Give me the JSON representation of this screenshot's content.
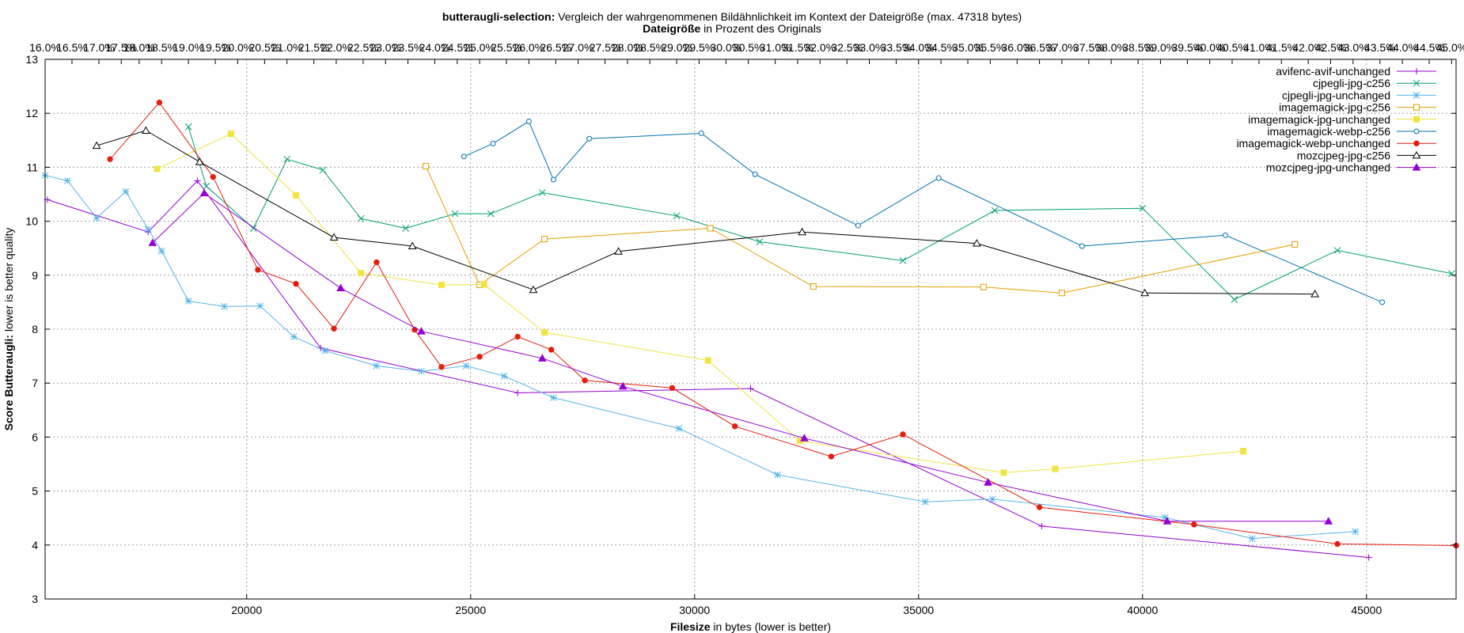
{
  "header": {
    "title_bold": "butteraugli-selection:",
    "title_rest": " Vergleich der wahrgenommenen Bildähnlichkeit im Kontext der Dateigröße (max. 47318 bytes)",
    "top_axis_bold": "Dateigröße",
    "top_axis_rest": " in Prozent des Originals"
  },
  "chart_data": {
    "type": "line",
    "xlabel_bold": "Filesize",
    "xlabel_rest": " in bytes (lower is better)",
    "ylabel_bold": "Score Butteraugli:",
    "ylabel_rest": " lower is better quality",
    "xlim": [
      15500,
      47000
    ],
    "ylim": [
      3,
      13
    ],
    "x_ticks": [
      20000,
      25000,
      30000,
      35000,
      40000,
      45000
    ],
    "y_ticks": [
      3,
      4,
      5,
      6,
      7,
      8,
      9,
      10,
      11,
      12,
      13
    ],
    "grid": true,
    "legend_position": "top-right",
    "top_ticks": [
      {
        "x": 15500,
        "label": "16.0%"
      },
      {
        "x": 16100,
        "label": "16.5%"
      },
      {
        "x": 16700,
        "label": "17.0%"
      },
      {
        "x": 17200,
        "label": "17.5%"
      },
      {
        "x": 17600,
        "label": "18.0%"
      },
      {
        "x": 18100,
        "label": "18.5%"
      },
      {
        "x": 18700,
        "label": "19.0%"
      },
      {
        "x": 19300,
        "label": "19.5%"
      },
      {
        "x": 19800,
        "label": "20.0%"
      },
      {
        "x": 20400,
        "label": "20.5%"
      },
      {
        "x": 20900,
        "label": "21.0%"
      },
      {
        "x": 21500,
        "label": "21.5%"
      },
      {
        "x": 22000,
        "label": "22.0%"
      },
      {
        "x": 22600,
        "label": "22.5%"
      },
      {
        "x": 23100,
        "label": "23.0%"
      },
      {
        "x": 23600,
        "label": "23.5%"
      },
      {
        "x": 24200,
        "label": "24.0%"
      },
      {
        "x": 24700,
        "label": "24.5%"
      },
      {
        "x": 25200,
        "label": "25.0%"
      },
      {
        "x": 25800,
        "label": "25.5%"
      },
      {
        "x": 26300,
        "label": "26.0%"
      },
      {
        "x": 26900,
        "label": "26.5%"
      },
      {
        "x": 27400,
        "label": "27.0%"
      },
      {
        "x": 28000,
        "label": "27.5%"
      },
      {
        "x": 28500,
        "label": "28.0%"
      },
      {
        "x": 29000,
        "label": "28.5%"
      },
      {
        "x": 29600,
        "label": "29.0%"
      },
      {
        "x": 30100,
        "label": "29.5%"
      },
      {
        "x": 30700,
        "label": "30.0%"
      },
      {
        "x": 31200,
        "label": "30.5%"
      },
      {
        "x": 31800,
        "label": "31.0%"
      },
      {
        "x": 32300,
        "label": "31.5%"
      },
      {
        "x": 32800,
        "label": "32.0%"
      },
      {
        "x": 33400,
        "label": "32.5%"
      },
      {
        "x": 33900,
        "label": "33.0%"
      },
      {
        "x": 34500,
        "label": "33.5%"
      },
      {
        "x": 35000,
        "label": "34.0%"
      },
      {
        "x": 35500,
        "label": "34.5%"
      },
      {
        "x": 36100,
        "label": "35.0%"
      },
      {
        "x": 36600,
        "label": "35.5%"
      },
      {
        "x": 37200,
        "label": "36.0%"
      },
      {
        "x": 37700,
        "label": "36.5%"
      },
      {
        "x": 38200,
        "label": "37.0%"
      },
      {
        "x": 38800,
        "label": "37.5%"
      },
      {
        "x": 39300,
        "label": "38.0%"
      },
      {
        "x": 39900,
        "label": "38.5%"
      },
      {
        "x": 40400,
        "label": "39.0%"
      },
      {
        "x": 41000,
        "label": "39.5%"
      },
      {
        "x": 41500,
        "label": "40.0%"
      },
      {
        "x": 42000,
        "label": "40.5%"
      },
      {
        "x": 42600,
        "label": "41.0%"
      },
      {
        "x": 43100,
        "label": "41.5%"
      },
      {
        "x": 43700,
        "label": "42.0%"
      },
      {
        "x": 44200,
        "label": "42.5%"
      },
      {
        "x": 44700,
        "label": "43.0%"
      },
      {
        "x": 45300,
        "label": "43.5%"
      },
      {
        "x": 45800,
        "label": "44.0%"
      },
      {
        "x": 46400,
        "label": "44.5%"
      },
      {
        "x": 46900,
        "label": "45.0%"
      }
    ],
    "series": [
      {
        "name": "avifenc-avif-unchanged",
        "color": "#9400d3",
        "marker": "plus",
        "points": [
          [
            15550,
            10.4
          ],
          [
            17800,
            9.8
          ],
          [
            18900,
            10.75
          ],
          [
            21650,
            7.65
          ],
          [
            26050,
            6.82
          ],
          [
            31250,
            6.9
          ],
          [
            37750,
            4.35
          ],
          [
            45050,
            3.77
          ]
        ]
      },
      {
        "name": "cjpegli-jpg-c256",
        "color": "#009e73",
        "marker": "cross",
        "points": [
          [
            18700,
            11.75
          ],
          [
            19100,
            10.65
          ],
          [
            20150,
            9.87
          ],
          [
            20900,
            11.15
          ],
          [
            21700,
            10.95
          ],
          [
            22550,
            10.05
          ],
          [
            23550,
            9.87
          ],
          [
            24650,
            10.14
          ],
          [
            25450,
            10.14
          ],
          [
            26600,
            10.53
          ],
          [
            29600,
            10.1
          ],
          [
            31450,
            9.62
          ],
          [
            34650,
            9.27
          ],
          [
            36700,
            10.2
          ],
          [
            40000,
            10.24
          ],
          [
            42050,
            8.55
          ],
          [
            44350,
            9.46
          ],
          [
            46900,
            9.03
          ]
        ]
      },
      {
        "name": "cjpegli-jpg-unchanged",
        "color": "#56b4e9",
        "marker": "asterisk",
        "points": [
          [
            15500,
            10.85
          ],
          [
            16000,
            10.75
          ],
          [
            16650,
            10.06
          ],
          [
            17300,
            10.55
          ],
          [
            17800,
            9.85
          ],
          [
            18100,
            9.45
          ],
          [
            18700,
            8.52
          ],
          [
            19500,
            8.42
          ],
          [
            20300,
            8.43
          ],
          [
            21050,
            7.86
          ],
          [
            21750,
            7.6
          ],
          [
            22900,
            7.32
          ],
          [
            23900,
            7.22
          ],
          [
            24900,
            7.32
          ],
          [
            25750,
            7.13
          ],
          [
            26850,
            6.73
          ],
          [
            29650,
            6.16
          ],
          [
            31850,
            5.3
          ],
          [
            35150,
            4.8
          ],
          [
            36650,
            4.85
          ],
          [
            40500,
            4.51
          ],
          [
            42450,
            4.12
          ],
          [
            44750,
            4.25
          ]
        ]
      },
      {
        "name": "imagemagick-jpg-c256",
        "color": "#e69f00",
        "marker": "square-open",
        "points": [
          [
            24000,
            11.02
          ],
          [
            25200,
            8.82
          ],
          [
            26650,
            9.67
          ],
          [
            30350,
            9.87
          ],
          [
            32650,
            8.79
          ],
          [
            36450,
            8.78
          ],
          [
            38200,
            8.67
          ],
          [
            43400,
            9.57
          ]
        ]
      },
      {
        "name": "imagemagick-jpg-unchanged",
        "color": "#f0e442",
        "marker": "square-filled",
        "points": [
          [
            18000,
            10.97
          ],
          [
            19650,
            11.62
          ],
          [
            21100,
            10.48
          ],
          [
            22550,
            9.04
          ],
          [
            24350,
            8.82
          ],
          [
            25300,
            8.83
          ],
          [
            26650,
            7.94
          ],
          [
            30300,
            7.42
          ],
          [
            32350,
            5.93
          ],
          [
            36900,
            5.34
          ],
          [
            38050,
            5.41
          ],
          [
            42250,
            5.74
          ]
        ]
      },
      {
        "name": "imagemagick-webp-c256",
        "color": "#0072b2",
        "marker": "circle-open",
        "points": [
          [
            24850,
            11.2
          ],
          [
            25500,
            11.44
          ],
          [
            26300,
            11.85
          ],
          [
            26850,
            10.77
          ],
          [
            27650,
            11.53
          ],
          [
            30150,
            11.63
          ],
          [
            31350,
            10.87
          ],
          [
            33650,
            9.92
          ],
          [
            35450,
            10.8
          ],
          [
            38650,
            9.54
          ],
          [
            41850,
            9.74
          ],
          [
            45350,
            8.5
          ]
        ]
      },
      {
        "name": "imagemagick-webp-unchanged",
        "color": "#e51e10",
        "marker": "circle-filled",
        "points": [
          [
            16950,
            11.15
          ],
          [
            18050,
            12.2
          ],
          [
            19250,
            10.82
          ],
          [
            20250,
            9.1
          ],
          [
            21100,
            8.84
          ],
          [
            21950,
            8.01
          ],
          [
            22900,
            9.24
          ],
          [
            23750,
            7.99
          ],
          [
            24350,
            7.3
          ],
          [
            25200,
            7.49
          ],
          [
            26050,
            7.86
          ],
          [
            26800,
            7.62
          ],
          [
            27550,
            7.05
          ],
          [
            29500,
            6.91
          ],
          [
            30900,
            6.2
          ],
          [
            33050,
            5.64
          ],
          [
            34650,
            6.05
          ],
          [
            37700,
            4.7
          ],
          [
            41150,
            4.38
          ],
          [
            44350,
            4.02
          ],
          [
            47000,
            3.99
          ]
        ]
      },
      {
        "name": "mozcjpeg-jpg-c256",
        "color": "#000000",
        "marker": "triangle-open",
        "points": [
          [
            16650,
            11.4
          ],
          [
            17750,
            11.68
          ],
          [
            18950,
            11.1
          ],
          [
            21950,
            9.7
          ],
          [
            23700,
            9.54
          ],
          [
            26400,
            8.73
          ],
          [
            28300,
            9.44
          ],
          [
            32400,
            9.8
          ],
          [
            36300,
            9.59
          ],
          [
            40050,
            8.67
          ],
          [
            43850,
            8.65
          ]
        ]
      },
      {
        "name": "mozcjpeg-jpg-unchanged",
        "color": "#9400d3",
        "marker": "triangle-filled",
        "points": [
          [
            17900,
            9.6
          ],
          [
            19050,
            10.52
          ],
          [
            22100,
            8.76
          ],
          [
            23900,
            7.96
          ],
          [
            26600,
            7.46
          ],
          [
            28400,
            6.94
          ],
          [
            32450,
            5.98
          ],
          [
            36550,
            5.16
          ],
          [
            40550,
            4.44
          ],
          [
            44150,
            4.44
          ]
        ]
      }
    ]
  }
}
